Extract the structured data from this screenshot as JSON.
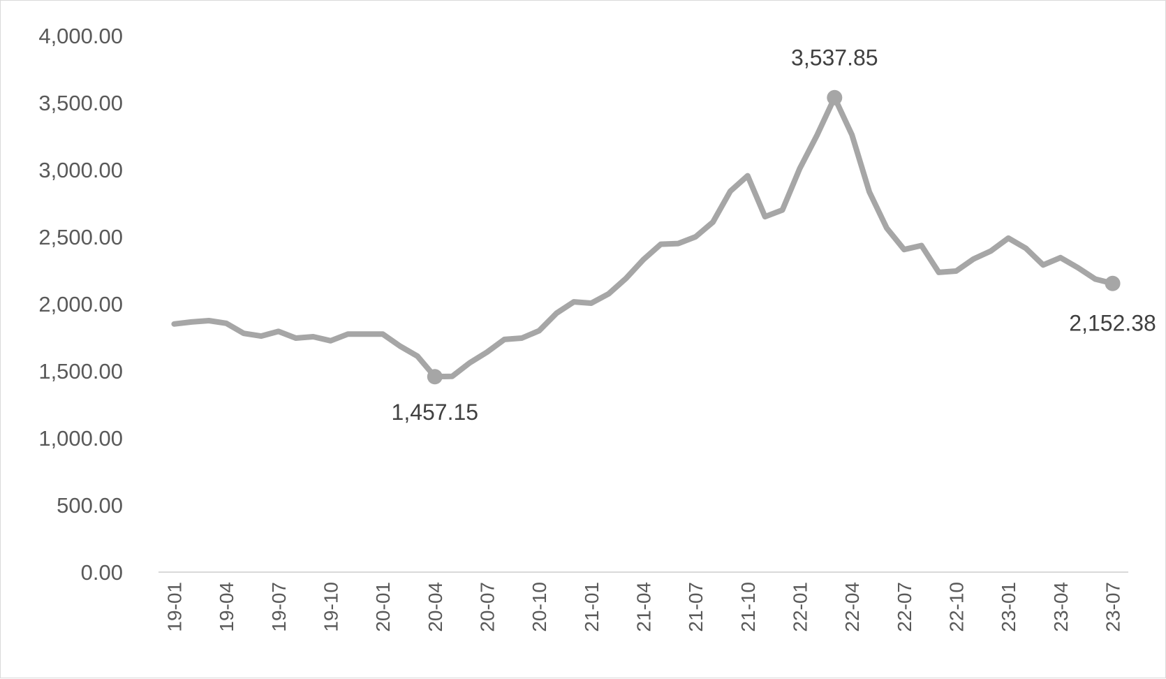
{
  "chart_data": {
    "type": "line",
    "title": "",
    "xlabel": "",
    "ylabel": "",
    "ylim": [
      0,
      4000
    ],
    "yticks": [
      "0.00",
      "500.00",
      "1,000.00",
      "1,500.00",
      "2,000.00",
      "2,500.00",
      "3,000.00",
      "3,500.00",
      "4,000.00"
    ],
    "grid": false,
    "legend": "none",
    "line_color": "#a6a6a6",
    "x": [
      "19-01",
      "19-02",
      "19-03",
      "19-04",
      "19-05",
      "19-06",
      "19-07",
      "19-08",
      "19-09",
      "19-10",
      "19-11",
      "19-12",
      "20-01",
      "20-02",
      "20-03",
      "20-04",
      "20-05",
      "20-06",
      "20-07",
      "20-08",
      "20-09",
      "20-10",
      "20-11",
      "20-12",
      "21-01",
      "21-02",
      "21-03",
      "21-04",
      "21-05",
      "21-06",
      "21-07",
      "21-08",
      "21-09",
      "21-10",
      "21-11",
      "21-12",
      "22-01",
      "22-02",
      "22-03",
      "22-04",
      "22-05",
      "22-06",
      "22-07",
      "22-08",
      "22-09",
      "22-10",
      "22-11",
      "22-12",
      "23-01",
      "23-02",
      "23-03",
      "23-04",
      "23-05",
      "23-06",
      "23-07"
    ],
    "xtick_labels": [
      "19-01",
      "19-04",
      "19-07",
      "19-10",
      "20-01",
      "20-04",
      "20-07",
      "20-10",
      "21-01",
      "21-04",
      "21-07",
      "21-10",
      "22-01",
      "22-04",
      "22-07",
      "22-10",
      "23-01",
      "23-04",
      "23-07"
    ],
    "series": [
      {
        "values": [
          1850,
          1865,
          1875,
          1855,
          1780,
          1760,
          1795,
          1745,
          1755,
          1725,
          1775,
          1775,
          1775,
          1685,
          1610,
          1457.15,
          1460,
          1560,
          1640,
          1735,
          1745,
          1800,
          1930,
          2015,
          2005,
          2075,
          2190,
          2330,
          2445,
          2450,
          2500,
          2610,
          2840,
          2955,
          2650,
          2700,
          3010,
          3260,
          3537.85,
          3260,
          2835,
          2565,
          2405,
          2435,
          2235,
          2245,
          2335,
          2395,
          2490,
          2415,
          2290,
          2345,
          2270,
          2185,
          2152.38
        ]
      }
    ],
    "annotations": [
      {
        "x": "20-04",
        "value": 1457.15,
        "label": "1,457.15"
      },
      {
        "x": "22-03",
        "value": 3537.85,
        "label": "3,537.85"
      },
      {
        "x": "23-07",
        "value": 2152.38,
        "label": "2,152.38"
      }
    ]
  }
}
